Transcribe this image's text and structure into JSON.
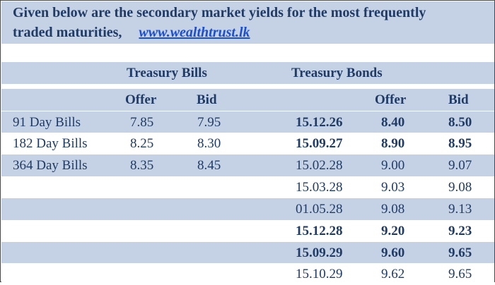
{
  "intro": {
    "text_line1": "Given below are the secondary market yields for the most frequently",
    "text_line2": "traded maturities,",
    "link": "www.wealthtrust.lk"
  },
  "table": {
    "group_headers": {
      "bills": "Treasury Bills",
      "bonds": "Treasury Bonds"
    },
    "sub_headers": {
      "bills_offer": "Offer",
      "bills_bid": "Bid",
      "bonds_offer": "Offer",
      "bonds_bid": "Bid"
    },
    "rows": [
      {
        "bill": "91 Day Bills",
        "bill_offer": "7.85",
        "bill_bid": "7.95",
        "bond": "15.12.26",
        "bond_offer": "8.40",
        "bond_bid": "8.50",
        "bold": true
      },
      {
        "bill": "182 Day Bills",
        "bill_offer": "8.25",
        "bill_bid": "8.30",
        "bond": "15.09.27",
        "bond_offer": "8.90",
        "bond_bid": "8.95",
        "bold": true
      },
      {
        "bill": "364 Day Bills",
        "bill_offer": "8.35",
        "bill_bid": "8.45",
        "bond": "15.02.28",
        "bond_offer": "9.00",
        "bond_bid": "9.07",
        "bold": false
      },
      {
        "bill": "",
        "bill_offer": "",
        "bill_bid": "",
        "bond": "15.03.28",
        "bond_offer": "9.03",
        "bond_bid": "9.08",
        "bold": false
      },
      {
        "bill": "",
        "bill_offer": "",
        "bill_bid": "",
        "bond": "01.05.28",
        "bond_offer": "9.08",
        "bond_bid": "9.13",
        "bold": false
      },
      {
        "bill": "",
        "bill_offer": "",
        "bill_bid": "",
        "bond": "15.12.28",
        "bond_offer": "9.20",
        "bond_bid": "9.23",
        "bold": true
      },
      {
        "bill": "",
        "bill_offer": "",
        "bill_bid": "",
        "bond": "15.09.29",
        "bond_offer": "9.60",
        "bond_bid": "9.65",
        "bold": true
      },
      {
        "bill": "",
        "bill_offer": "",
        "bill_bid": "",
        "bond": "15.10.29",
        "bond_offer": "9.62",
        "bond_bid": "9.65",
        "bold": false
      }
    ]
  },
  "colors": {
    "band": "#c5d2e5",
    "text": "#1f3b66",
    "link": "#1b4fd0"
  }
}
